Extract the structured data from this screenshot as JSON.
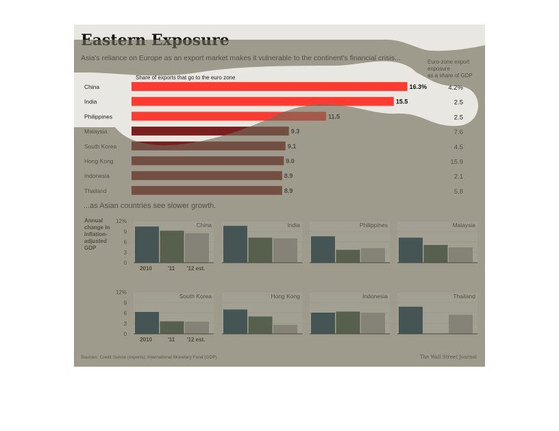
{
  "header": {
    "title": "Eastern Exposure",
    "subtitle": "Asia's reliance on Europe as an export market makes it vulnerable to the continent's financial crisis..."
  },
  "bar_section": {
    "bar_label": "Share of exports that go to the euro zone",
    "side_label_lines": [
      "Euro-zone export",
      "exposure",
      "as a share of GDP"
    ]
  },
  "growth_section": {
    "heading": "...as Asian countries see slower growth.",
    "y_label_lines": [
      "Annual",
      "change in",
      "inflation-",
      "adjusted",
      "GDP"
    ]
  },
  "footer": {
    "sources": "Sources: Credit Suisse (exports); International Monetary Fund (GDP)",
    "brand": "The Wall Street Journal"
  },
  "colors": {
    "bar_red": "#ff3b30",
    "bar_dark_red": "#7a1f1f",
    "year_2010": "#00304d",
    "year_2011": "#2f4d3a",
    "year_2012": "#a9a9a9",
    "background": "#e9e7e1",
    "overlay": "#6f6c58"
  },
  "chart_data": [
    {
      "type": "bar",
      "orientation": "horizontal",
      "title": "Share of exports that go to the euro zone",
      "categories": [
        "China",
        "India",
        "Philippines",
        "Malaysia",
        "South Korea",
        "Hong Kong",
        "Indonesia",
        "Thailand"
      ],
      "values": [
        16.3,
        15.5,
        11.5,
        9.3,
        9.1,
        9.0,
        8.9,
        8.9
      ],
      "value_labels": [
        "16.3%",
        "15.5",
        "11.5",
        "9.3",
        "9.1",
        "9.0",
        "8.9",
        "8.9"
      ],
      "side_column": {
        "label": "Euro-zone export exposure as a share of GDP",
        "values": [
          4.2,
          2.5,
          2.5,
          7.6,
          4.5,
          15.9,
          2.1,
          5.8
        ],
        "labels": [
          "4.2%",
          "2.5",
          "2.5",
          "7.6",
          "4.5",
          "15.9",
          "2.1",
          "5.8"
        ]
      }
    },
    {
      "type": "bar",
      "title": "...as Asian countries see slower growth.",
      "ylabel": "Annual change in inflation-adjusted GDP",
      "ylim": [
        0,
        12
      ],
      "yticks": [
        "12%",
        "9",
        "6",
        "3",
        "0"
      ],
      "categories": [
        "2010",
        "'11",
        "'12 est."
      ],
      "panels": [
        {
          "name": "China",
          "values": [
            10.4,
            9.2,
            8.5
          ]
        },
        {
          "name": "India",
          "values": [
            10.6,
            7.2,
            7.0
          ]
        },
        {
          "name": "Philippines",
          "values": [
            7.6,
            3.7,
            4.2
          ]
        },
        {
          "name": "Malaysia",
          "values": [
            7.2,
            5.1,
            4.4
          ]
        },
        {
          "name": "South Korea",
          "values": [
            6.3,
            3.6,
            3.5
          ]
        },
        {
          "name": "Hong Kong",
          "values": [
            7.0,
            5.0,
            2.6
          ]
        },
        {
          "name": "Indonesia",
          "values": [
            6.1,
            6.4,
            6.1
          ]
        },
        {
          "name": "Thailand",
          "values": [
            7.8,
            0.1,
            5.5
          ]
        }
      ]
    }
  ]
}
